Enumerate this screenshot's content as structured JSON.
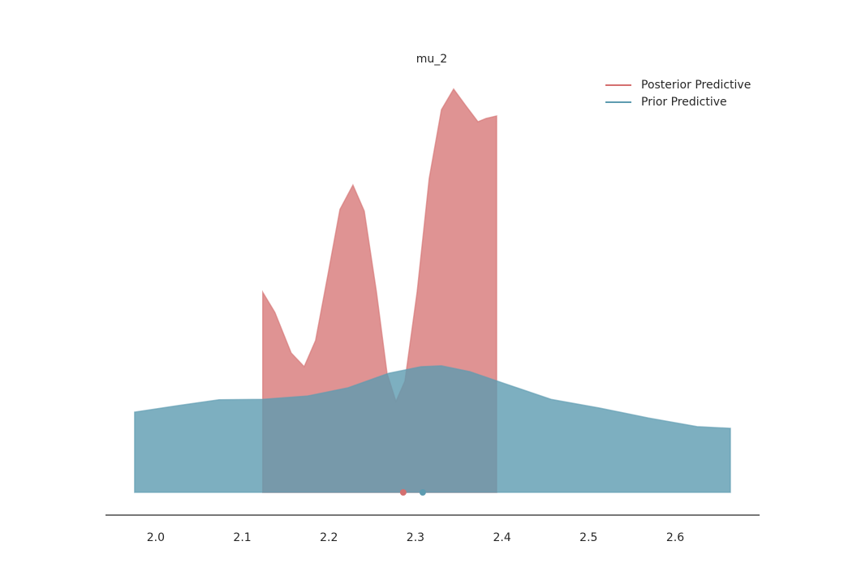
{
  "chart_data": {
    "type": "density",
    "title": "mu_2",
    "xlim": [
      1.942,
      2.6975
    ],
    "ylim": [
      0,
      10
    ],
    "xticks": [
      {
        "value": 2,
        "label": "2.0"
      },
      2.1,
      2.2,
      2.3,
      2.4,
      2.5,
      2.6
    ],
    "legend": "upper right",
    "series": [
      {
        "name": "Posterior Predictive",
        "color": "#d46f6f",
        "x": [
          2.1236,
          2.1377,
          2.1565,
          2.1715,
          2.1846,
          2.1987,
          2.2128,
          2.2278,
          2.2409,
          2.255,
          2.2672,
          2.2775,
          2.2878,
          2.3019,
          2.3159,
          2.33,
          2.3441,
          2.3581,
          2.3722,
          2.3816,
          2.3938
        ],
        "values": [
          4.84,
          4.35,
          3.37,
          3.04,
          3.67,
          5.24,
          6.84,
          7.43,
          6.8,
          4.84,
          2.88,
          2.2,
          2.69,
          4.84,
          7.59,
          9.25,
          9.75,
          9.35,
          8.96,
          9.04,
          9.1
        ],
        "point_estimate": 2.2859
      },
      {
        "name": "Prior Predictive",
        "color": "#5d9bb0",
        "x": [
          1.9756,
          2.0263,
          2.0731,
          2.1238,
          2.1753,
          2.2222,
          2.2691,
          2.3066,
          2.33,
          2.3628,
          2.4003,
          2.4566,
          2.5128,
          2.5691,
          2.6253,
          2.6638
        ],
        "values": [
          1.94,
          2.1,
          2.24,
          2.25,
          2.33,
          2.53,
          2.88,
          3.04,
          3.06,
          2.92,
          2.65,
          2.25,
          2.04,
          1.8,
          1.59,
          1.55
        ],
        "point_estimate": 2.3084
      }
    ]
  }
}
